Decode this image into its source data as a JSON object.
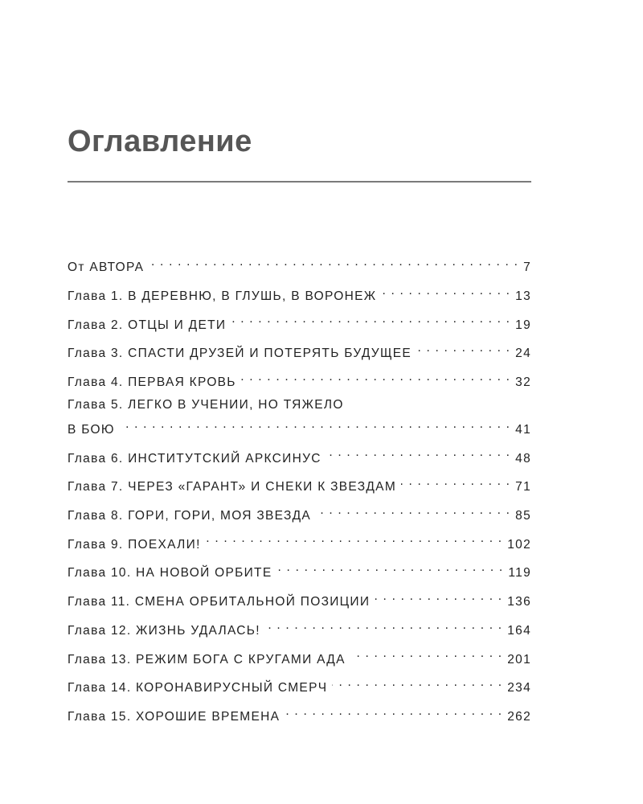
{
  "title": "Оглавление",
  "entries": [
    {
      "label": "От АВТОРА",
      "page": "7"
    },
    {
      "label": "Глава 1. В ДЕРЕВНЮ, В ГЛУШЬ, В ВОРОНЕЖ",
      "page": "13"
    },
    {
      "label": "Глава 2. ОТЦЫ И ДЕТИ",
      "page": "19"
    },
    {
      "label": "Глава 3. СПАСТИ ДРУЗЕЙ И ПОТЕРЯТЬ БУДУЩЕЕ",
      "page": "24"
    },
    {
      "label": "Глава 4. ПЕРВАЯ КРОВЬ",
      "page": "32"
    },
    {
      "label": "Глава 5. ЛЕГКО В УЧЕНИИ, НО ТЯЖЕЛО",
      "label_cont": "В БОЮ",
      "page": "41"
    },
    {
      "label": "Глава 6. ИНСТИТУТСКИЙ АРКСИНУС",
      "page": "48"
    },
    {
      "label": "Глава 7. ЧЕРЕЗ «ГАРАНТ» И СНЕКИ К ЗВЕЗДАМ",
      "page": "71"
    },
    {
      "label": "Глава 8. ГОРИ, ГОРИ, МОЯ ЗВЕЗДА",
      "page": "85"
    },
    {
      "label": "Глава 9. ПОЕХАЛИ!",
      "page": "102"
    },
    {
      "label": "Глава 10. НА НОВОЙ ОРБИТЕ",
      "page": "119"
    },
    {
      "label": "Глава 11. СМЕНА ОРБИТАЛЬНОЙ ПОЗИЦИИ",
      "page": "136"
    },
    {
      "label": "Глава 12. ЖИЗНЬ УДАЛАСЬ!",
      "page": "164"
    },
    {
      "label": "Глава 13. РЕЖИМ БОГА С КРУГАМИ АДА",
      "page": "201"
    },
    {
      "label": "Глава 14. КОРОНАВИРУСНЫЙ СМЕРЧ",
      "page": "234"
    },
    {
      "label": "Глава 15. ХОРОШИЕ ВРЕМЕНА",
      "page": "262"
    }
  ]
}
